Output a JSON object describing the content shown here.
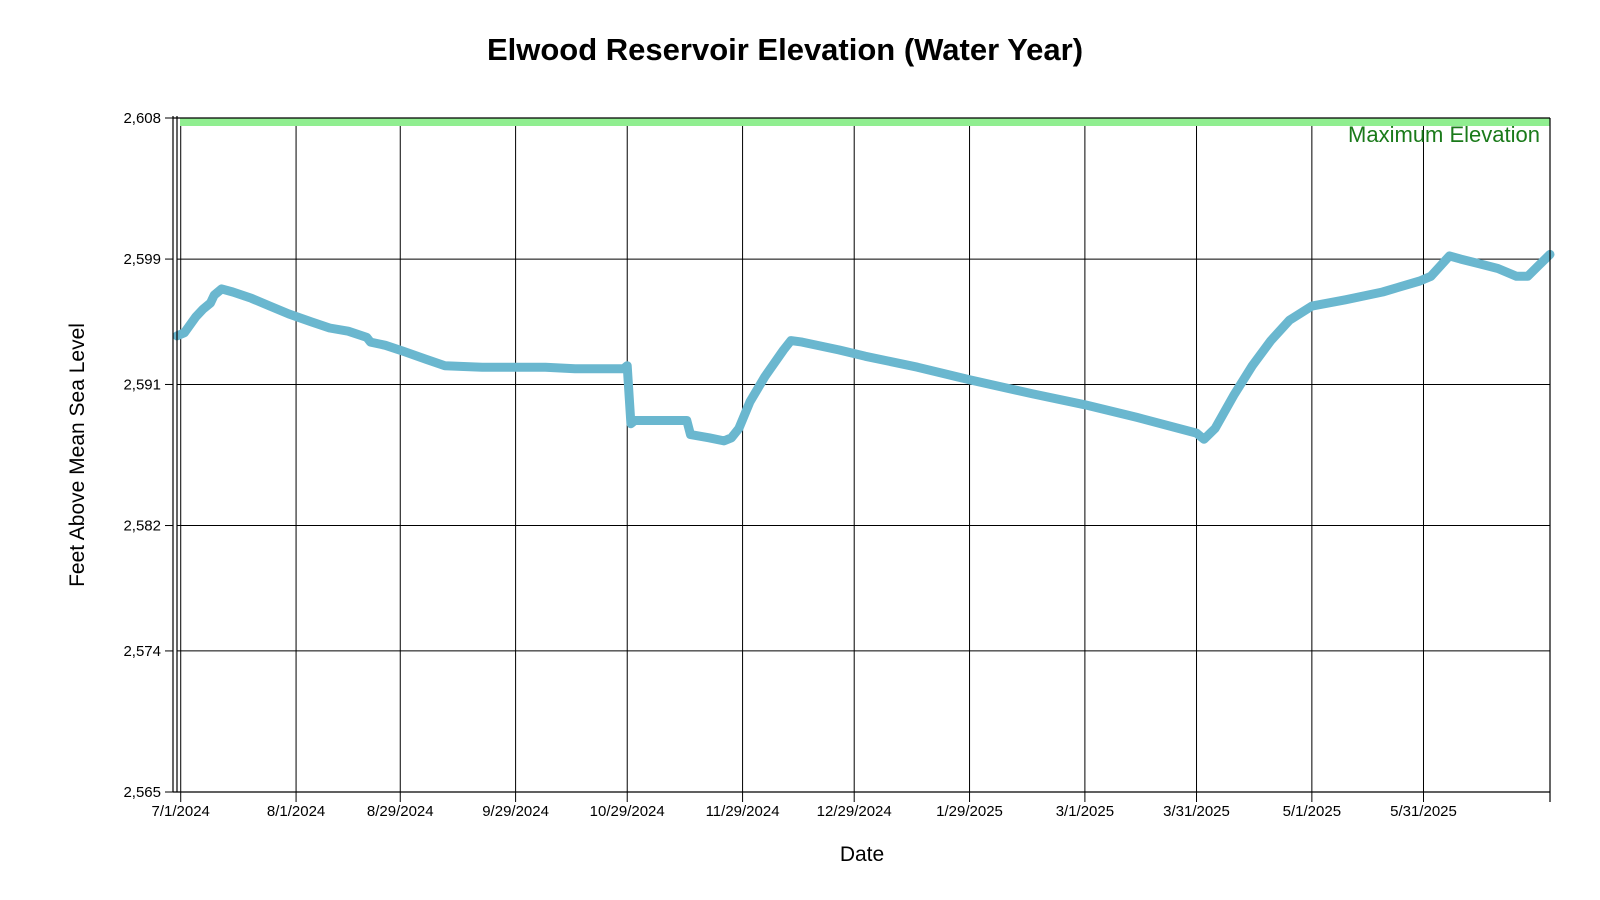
{
  "chart_data": {
    "type": "line",
    "title": "Elwood Reservoir Elevation (Water Year)",
    "xlabel": "Date",
    "ylabel": "Feet Above Mean Sea Level",
    "ylim": [
      2565,
      2608
    ],
    "xlim": [
      "2024-06-30",
      "2025-07-04"
    ],
    "y_ticks": [
      2565,
      2574,
      2582,
      2591,
      2599,
      2608
    ],
    "y_tick_labels": [
      "2,565",
      "2,574",
      "2,582",
      "2,591",
      "2,599",
      "2,608"
    ],
    "x_ticks": [
      "2024-07-01",
      "2024-08-01",
      "2024-08-29",
      "2024-09-29",
      "2024-10-29",
      "2024-11-29",
      "2024-12-29",
      "2025-01-29",
      "2025-03-01",
      "2025-03-31",
      "2025-05-01",
      "2025-05-31"
    ],
    "x_tick_labels": [
      "7/1/2024",
      "8/1/2024",
      "8/29/2024",
      "9/29/2024",
      "10/29/2024",
      "11/29/2024",
      "12/29/2024",
      "1/29/2025",
      "3/1/2025",
      "3/31/2025",
      "5/1/2025",
      "5/31/2025"
    ],
    "grid": true,
    "max_elevation": {
      "label": "Maximum Elevation",
      "value": 2608,
      "color": "#90ee90",
      "text_color": "#1a7a1a"
    },
    "series": [
      {
        "color": "#6ab7cf",
        "x": [
          "2024-06-30",
          "2024-07-02",
          "2024-07-05",
          "2024-07-07",
          "2024-07-09",
          "2024-07-10",
          "2024-07-12",
          "2024-07-15",
          "2024-07-20",
          "2024-07-25",
          "2024-07-30",
          "2024-08-05",
          "2024-08-10",
          "2024-08-15",
          "2024-08-20",
          "2024-08-21",
          "2024-08-25",
          "2024-08-30",
          "2024-09-05",
          "2024-09-10",
          "2024-09-20",
          "2024-10-01",
          "2024-10-07",
          "2024-10-15",
          "2024-10-28",
          "2024-10-29",
          "2024-10-30",
          "2024-10-31",
          "2024-11-05",
          "2024-11-14",
          "2024-11-15",
          "2024-11-20",
          "2024-11-24",
          "2024-11-26",
          "2024-11-28",
          "2024-12-01",
          "2024-12-05",
          "2024-12-10",
          "2024-12-12",
          "2024-12-15",
          "2024-12-25",
          "2025-01-01",
          "2025-01-15",
          "2025-01-29",
          "2025-02-15",
          "2025-03-01",
          "2025-03-15",
          "2025-03-31",
          "2025-04-02",
          "2025-04-05",
          "2025-04-10",
          "2025-04-15",
          "2025-04-20",
          "2025-04-25",
          "2025-05-01",
          "2025-05-10",
          "2025-05-20",
          "2025-05-30",
          "2025-06-02",
          "2025-06-07",
          "2025-06-10",
          "2025-06-15",
          "2025-06-20",
          "2025-06-25",
          "2025-06-28",
          "2025-07-01",
          "2025-07-04"
        ],
        "values": [
          2594.1,
          2594.3,
          2595.3,
          2595.8,
          2596.2,
          2596.7,
          2597.1,
          2596.9,
          2596.5,
          2596.0,
          2595.5,
          2595.0,
          2594.6,
          2594.4,
          2594.0,
          2593.7,
          2593.5,
          2593.1,
          2592.6,
          2592.2,
          2592.1,
          2592.1,
          2592.1,
          2592.0,
          2592.0,
          2592.2,
          2588.5,
          2588.7,
          2588.7,
          2588.7,
          2587.8,
          2587.6,
          2587.4,
          2587.6,
          2588.2,
          2589.9,
          2591.5,
          2593.2,
          2593.8,
          2593.7,
          2593.2,
          2592.8,
          2592.1,
          2591.3,
          2590.4,
          2589.7,
          2588.9,
          2587.9,
          2587.5,
          2588.2,
          2590.3,
          2592.2,
          2593.8,
          2595.1,
          2596.0,
          2596.4,
          2596.9,
          2597.6,
          2597.9,
          2599.2,
          2599.0,
          2598.7,
          2598.4,
          2597.9,
          2597.9,
          2598.6,
          2599.3
        ]
      }
    ]
  }
}
